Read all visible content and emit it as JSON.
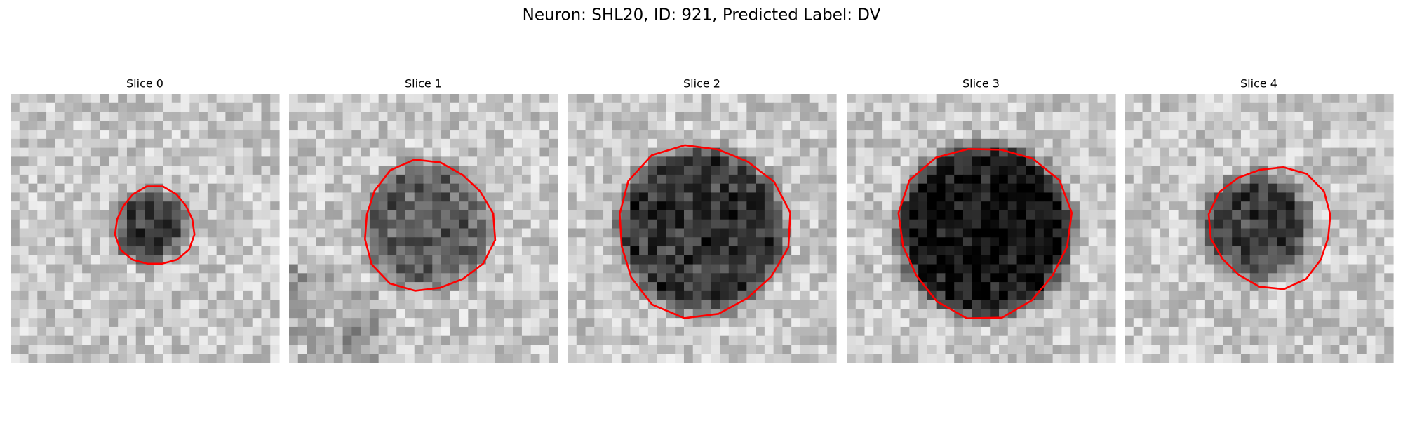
{
  "title": "Neuron: SHL20, ID: 921, Predicted Label: DV",
  "panels": [
    {
      "title": "Slice 0"
    },
    {
      "title": "Slice 1"
    },
    {
      "title": "Slice 2"
    },
    {
      "title": "Slice 3"
    },
    {
      "title": "Slice 4"
    }
  ]
}
